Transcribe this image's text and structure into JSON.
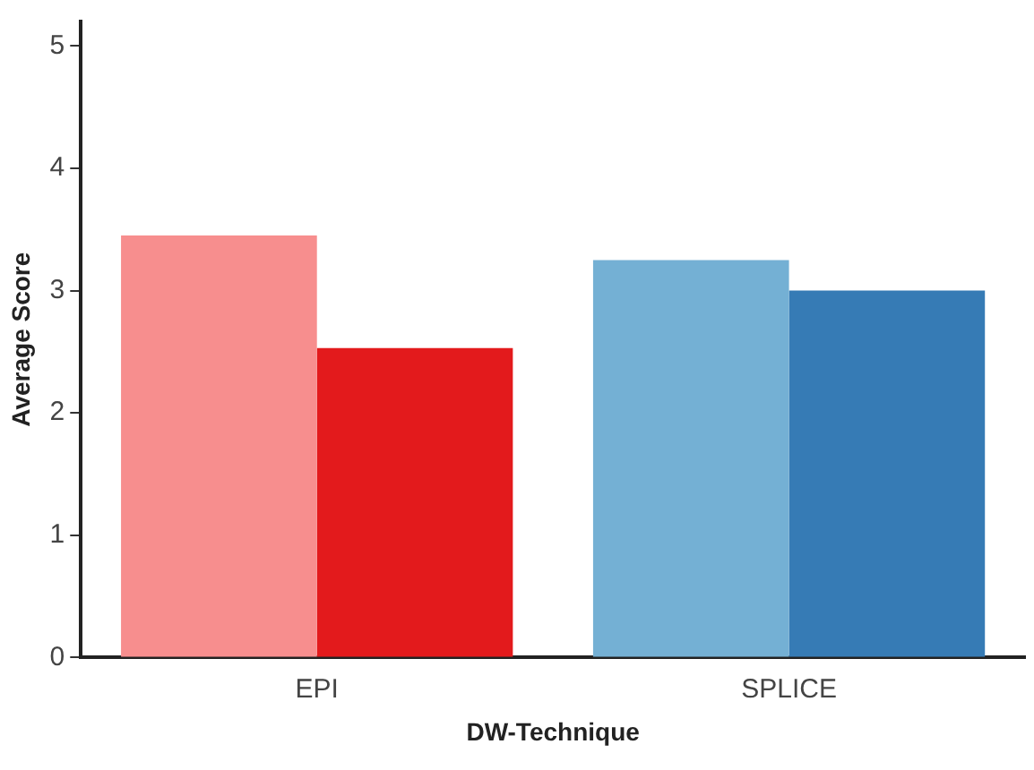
{
  "chart_data": {
    "type": "bar",
    "xlabel": "DW-Technique",
    "ylabel": "Average Score",
    "categories": [
      "EPI",
      "SPLICE"
    ],
    "series": [
      {
        "colors": [
          "#f78e8e",
          "#74b0d4"
        ],
        "values": [
          3.45,
          3.25
        ]
      },
      {
        "colors": [
          "#e31a1c",
          "#367bb5"
        ],
        "values": [
          2.53,
          3.0
        ]
      }
    ],
    "ylim": [
      0,
      5.2
    ],
    "yticks": [
      0,
      1,
      2,
      3,
      4,
      5
    ],
    "grid": false,
    "legend": false
  }
}
